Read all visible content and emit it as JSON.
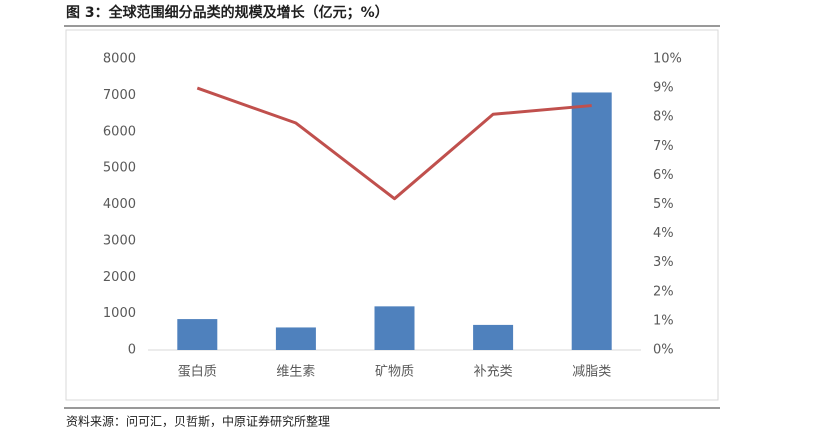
{
  "chart_data": {
    "type": "combo",
    "title": "图 3：全球范围细分品类的规模及增长（亿元；%）",
    "source": "资料来源：问可汇，贝哲斯，中原证券研究所整理",
    "categories": [
      "蛋白质",
      "维生素",
      "矿物质",
      "补充类",
      "减脂类"
    ],
    "series": [
      {
        "type": "bar",
        "color": "#4f81bd",
        "values": [
          850,
          620,
          1200,
          690,
          7080
        ]
      },
      {
        "type": "line",
        "axis": "y2",
        "color": "#c0504d",
        "values": [
          9.0,
          7.8,
          5.2,
          8.1,
          8.4
        ]
      }
    ],
    "ylim": [
      0,
      8000
    ],
    "yticks": [
      0,
      1000,
      2000,
      3000,
      4000,
      5000,
      6000,
      7000,
      8000
    ],
    "y2lim": [
      0,
      10
    ],
    "y2ticks": [
      {
        "value": 0,
        "label": "0%"
      },
      {
        "value": 1,
        "label": "1%"
      },
      {
        "value": 2,
        "label": "2%"
      },
      {
        "value": 3,
        "label": "3%"
      },
      {
        "value": 4,
        "label": "4%"
      },
      {
        "value": 5,
        "label": "5%"
      },
      {
        "value": 6,
        "label": "6%"
      },
      {
        "value": 7,
        "label": "7%"
      },
      {
        "value": 8,
        "label": "8%"
      },
      {
        "value": 9,
        "label": "9%"
      },
      {
        "value": 10,
        "label": "10%"
      }
    ]
  }
}
